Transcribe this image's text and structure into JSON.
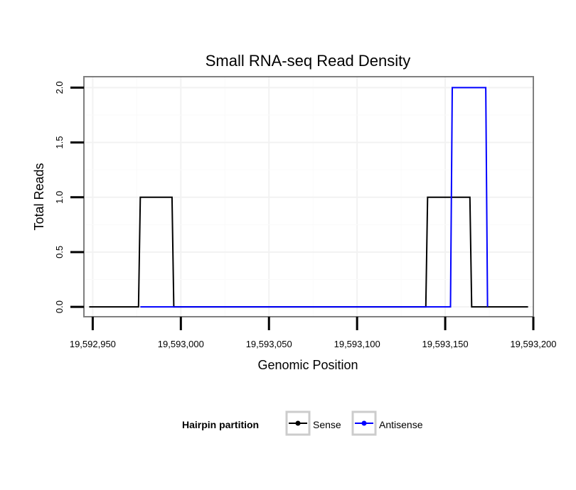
{
  "chart_data": {
    "type": "line",
    "title": "Small RNA-seq Read Density",
    "xlabel": "Genomic Position",
    "ylabel": "Total Reads",
    "xlim": [
      19592945,
      19593200
    ],
    "ylim": [
      -0.09,
      2.1
    ],
    "x_ticks": [
      19592950,
      19593000,
      19593050,
      19593100,
      19593150,
      19593200
    ],
    "x_tick_labels": [
      "19,592,950",
      "19,593,000",
      "19,593,050",
      "19,593,100",
      "19,593,150",
      "19,593,200"
    ],
    "y_ticks": [
      0,
      0.5,
      1,
      1.5,
      2
    ],
    "y_tick_labels": [
      "0.0",
      "0.5",
      "1.0",
      "1.5",
      "2.0"
    ],
    "grid": true,
    "legend_position": "bottom",
    "legend_title": "Hairpin partition",
    "series": [
      {
        "name": "Sense",
        "color": "#000000",
        "points": [
          [
            19592948,
            0
          ],
          [
            19592976,
            0
          ],
          [
            19592977,
            1
          ],
          [
            19592995,
            1
          ],
          [
            19592996,
            0
          ],
          [
            19593139,
            0
          ],
          [
            19593140,
            1
          ],
          [
            19593164,
            1
          ],
          [
            19593165,
            0
          ],
          [
            19593197,
            0
          ]
        ]
      },
      {
        "name": "Antisense",
        "color": "#0000ff",
        "points": [
          [
            19592977,
            0
          ],
          [
            19592996,
            0
          ],
          [
            19593153,
            0
          ],
          [
            19593154,
            2
          ],
          [
            19593173,
            2
          ],
          [
            19593174,
            0
          ]
        ]
      }
    ]
  }
}
